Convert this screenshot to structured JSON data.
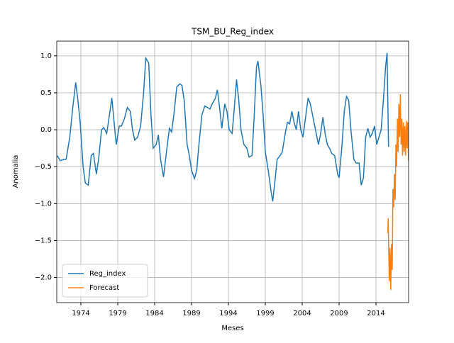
{
  "chart_data": {
    "type": "line",
    "title": "TSM_BU_Reg_index",
    "x_label": "Meses",
    "y_label": "Anomalia",
    "xlim": [
      1970.73,
      2018.42
    ],
    "xticks": [
      1974,
      1979,
      1984,
      1989,
      1994,
      1999,
      2004,
      2009,
      2014
    ],
    "ylim": [
      -2.34,
      1.2
    ],
    "yticks": [
      {
        "value": -2.0,
        "label": "−2.0"
      },
      {
        "value": -1.5,
        "label": "−1.5"
      },
      {
        "value": -1.0,
        "label": "−1.0"
      },
      {
        "value": -0.5,
        "label": "−0.5"
      },
      {
        "value": 0.0,
        "label": "0.0"
      },
      {
        "value": 0.5,
        "label": "0.5"
      },
      {
        "value": 1.0,
        "label": "1.0"
      }
    ],
    "grid": true,
    "legend": "lower left",
    "series": [
      {
        "name": "Reg_index",
        "color": "#1f77b4",
        "x": [
          1970.8,
          1971.2,
          1971.7,
          1972.0,
          1972.5,
          1972.9,
          1973.3,
          1973.6,
          1973.9,
          1974.3,
          1974.6,
          1975.0,
          1975.4,
          1975.7,
          1976.1,
          1976.4,
          1976.8,
          1977.1,
          1977.5,
          1977.8,
          1978.2,
          1978.5,
          1978.8,
          1979.2,
          1979.5,
          1979.9,
          1980.3,
          1980.7,
          1981.0,
          1981.3,
          1981.7,
          1982.1,
          1982.5,
          1982.8,
          1983.2,
          1983.5,
          1983.8,
          1984.2,
          1984.5,
          1984.8,
          1985.2,
          1985.6,
          1986.0,
          1986.3,
          1986.6,
          1987.0,
          1987.4,
          1987.7,
          1988.0,
          1988.4,
          1988.7,
          1989.0,
          1989.4,
          1989.7,
          1990.0,
          1990.4,
          1990.8,
          1991.2,
          1991.5,
          1991.8,
          1992.2,
          1992.5,
          1992.8,
          1993.1,
          1993.5,
          1993.8,
          1994.1,
          1994.5,
          1994.8,
          1995.1,
          1995.4,
          1995.7,
          1996.1,
          1996.5,
          1996.8,
          1997.2,
          1997.5,
          1997.8,
          1998.0,
          1998.4,
          1998.7,
          1999.0,
          1999.4,
          1999.8,
          2000.0,
          2000.3,
          2000.6,
          2001.0,
          2001.3,
          2001.7,
          2002.0,
          2002.3,
          2002.6,
          2002.9,
          2003.2,
          2003.5,
          2003.8,
          2004.1,
          2004.5,
          2004.8,
          2005.1,
          2005.4,
          2005.8,
          2006.2,
          2006.5,
          2006.8,
          2007.1,
          2007.4,
          2007.7,
          2008.0,
          2008.4,
          2008.8,
          2009.0,
          2009.4,
          2009.7,
          2010.0,
          2010.3,
          2010.6,
          2011.0,
          2011.3,
          2011.7,
          2012.0,
          2012.3,
          2012.6,
          2012.9,
          2013.2,
          2013.5,
          2013.8,
          2014.1,
          2014.4,
          2014.7,
          2015.0,
          2015.3,
          2015.5,
          2015.7
        ],
        "values": [
          -0.35,
          -0.42,
          -0.4,
          -0.4,
          -0.1,
          0.3,
          0.64,
          0.4,
          0.1,
          -0.5,
          -0.72,
          -0.75,
          -0.35,
          -0.32,
          -0.6,
          -0.4,
          0.0,
          0.03,
          -0.05,
          0.15,
          0.43,
          0.1,
          -0.2,
          0.05,
          0.05,
          0.15,
          0.3,
          0.25,
          0.0,
          -0.14,
          -0.1,
          0.05,
          0.5,
          0.97,
          0.9,
          0.2,
          -0.25,
          -0.2,
          -0.07,
          -0.4,
          -0.64,
          -0.3,
          0.02,
          -0.03,
          0.2,
          0.58,
          0.62,
          0.6,
          0.4,
          -0.2,
          -0.35,
          -0.55,
          -0.66,
          -0.55,
          -0.2,
          0.2,
          0.32,
          0.3,
          0.28,
          0.35,
          0.42,
          0.54,
          0.3,
          0.02,
          0.35,
          0.25,
          0.0,
          -0.05,
          0.3,
          0.68,
          0.4,
          0.0,
          -0.2,
          -0.25,
          -0.37,
          -0.35,
          0.2,
          0.85,
          0.93,
          0.6,
          0.2,
          -0.3,
          -0.55,
          -0.85,
          -0.97,
          -0.7,
          -0.4,
          -0.35,
          -0.3,
          -0.05,
          0.1,
          0.08,
          0.25,
          0.1,
          0.0,
          0.25,
          0.0,
          -0.1,
          0.2,
          0.43,
          0.35,
          0.2,
          0.0,
          -0.2,
          -0.05,
          0.17,
          -0.05,
          -0.2,
          -0.25,
          -0.32,
          -0.35,
          -0.6,
          -0.65,
          -0.2,
          0.25,
          0.45,
          0.4,
          0.0,
          -0.4,
          -0.45,
          -0.45,
          -0.75,
          -0.65,
          -0.1,
          0.02,
          -0.1,
          -0.05,
          0.05,
          -0.2,
          -0.1,
          0.0,
          0.4,
          0.85,
          1.04,
          -0.23
        ]
      },
      {
        "name": "Forecast",
        "color": "#ff7f0e",
        "x": [
          2015.6,
          2015.65,
          2015.8,
          2015.9,
          2016.0,
          2016.1,
          2016.2,
          2016.3,
          2016.4,
          2016.5,
          2016.6,
          2016.7,
          2016.8,
          2016.9,
          2017.0,
          2017.1,
          2017.2,
          2017.3,
          2017.4,
          2017.5,
          2017.6,
          2017.7,
          2017.8,
          2017.9,
          2018.0,
          2018.1,
          2018.2,
          2018.3,
          2018.4
        ],
        "values": [
          -1.4,
          -1.2,
          -2.05,
          -1.6,
          -2.17,
          -1.55,
          -1.9,
          -0.8,
          -1.05,
          -0.6,
          -0.95,
          -0.2,
          -0.5,
          0.15,
          -0.3,
          0.35,
          -0.1,
          0.48,
          -0.2,
          0.15,
          -0.35,
          0.1,
          -0.3,
          0.05,
          -0.35,
          0.12,
          -0.25,
          0.1,
          -0.42
        ]
      }
    ]
  }
}
